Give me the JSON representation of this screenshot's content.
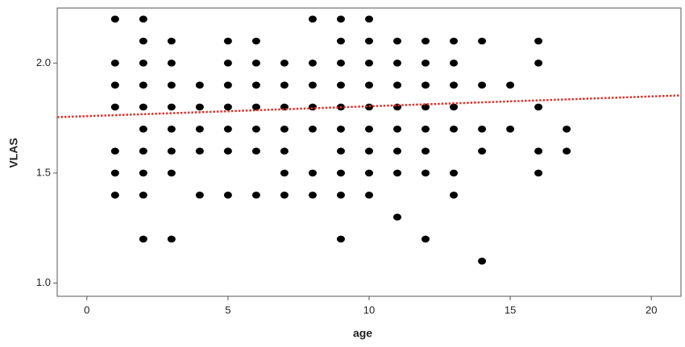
{
  "chart_data": {
    "type": "scatter",
    "x_label": "age",
    "y_label": "VLAS",
    "xlim": [
      -1.05,
      21.05
    ],
    "ylim": [
      0.94,
      2.25
    ],
    "xticks": [
      0,
      5,
      10,
      15,
      20
    ],
    "yticks": [
      {
        "value": 1.0,
        "label": "1.0"
      },
      1.5,
      {
        "value": 2.0,
        "label": "2.0"
      }
    ],
    "points": {
      "color": "#000000",
      "x": [
        1,
        1,
        1,
        1,
        1,
        1,
        1,
        2,
        2,
        2,
        2,
        2,
        2,
        2,
        2,
        2,
        2,
        3,
        3,
        3,
        3,
        3,
        3,
        3,
        3,
        4,
        4,
        4,
        4,
        4,
        5,
        5,
        5,
        5,
        5,
        5,
        5,
        6,
        6,
        6,
        6,
        6,
        6,
        6,
        7,
        7,
        7,
        7,
        7,
        7,
        7,
        8,
        8,
        8,
        8,
        8,
        8,
        8,
        9,
        9,
        9,
        9,
        9,
        9,
        9,
        9,
        9,
        9,
        10,
        10,
        10,
        10,
        10,
        10,
        10,
        10,
        10,
        11,
        11,
        11,
        11,
        11,
        11,
        11,
        11,
        12,
        12,
        12,
        12,
        12,
        12,
        12,
        12,
        13,
        13,
        13,
        13,
        13,
        13,
        13,
        14,
        14,
        14,
        14,
        14,
        15,
        15,
        16,
        16,
        16,
        16,
        16,
        17,
        17
      ],
      "y": [
        2.2,
        2.0,
        1.9,
        1.8,
        1.6,
        1.5,
        1.4,
        2.2,
        2.1,
        2.0,
        1.9,
        1.8,
        1.7,
        1.6,
        1.5,
        1.4,
        1.2,
        2.1,
        2.0,
        1.9,
        1.8,
        1.7,
        1.6,
        1.5,
        1.2,
        1.9,
        1.8,
        1.7,
        1.6,
        1.4,
        2.1,
        2.0,
        1.9,
        1.8,
        1.7,
        1.6,
        1.4,
        2.1,
        2.0,
        1.9,
        1.8,
        1.7,
        1.6,
        1.4,
        2.0,
        1.9,
        1.8,
        1.7,
        1.6,
        1.5,
        1.4,
        2.2,
        2.0,
        1.9,
        1.8,
        1.7,
        1.5,
        1.4,
        2.2,
        2.1,
        2.0,
        1.9,
        1.8,
        1.7,
        1.6,
        1.5,
        1.4,
        1.2,
        2.2,
        2.1,
        2.0,
        1.9,
        1.8,
        1.7,
        1.6,
        1.5,
        1.4,
        2.1,
        2.0,
        1.9,
        1.8,
        1.7,
        1.6,
        1.5,
        1.3,
        2.1,
        2.0,
        1.9,
        1.8,
        1.7,
        1.6,
        1.5,
        1.2,
        2.1,
        2.0,
        1.9,
        1.8,
        1.7,
        1.5,
        1.4,
        2.1,
        1.9,
        1.7,
        1.6,
        1.1,
        1.9,
        1.7,
        2.1,
        2.0,
        1.8,
        1.6,
        1.5,
        1.7,
        1.6
      ]
    },
    "fit_line": {
      "color": "#e0302a",
      "x": [
        -1.05,
        21.05
      ],
      "y": [
        1.754,
        1.853
      ]
    }
  }
}
